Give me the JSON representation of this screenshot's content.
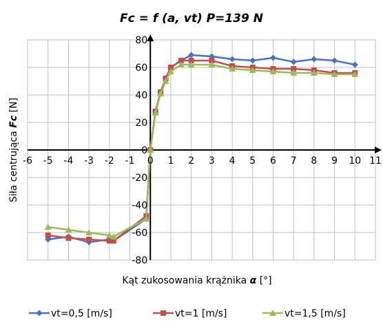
{
  "chart_data": {
    "type": "line",
    "title": "Fc = f (a, vt) P=139 N",
    "xlabel": "Kąt zukosowania krążnika",
    "xlabel_symbol": "α",
    "xlabel_unit": "[°]",
    "ylabel": "Siła centrująca",
    "ylabel_symbol": "Fc",
    "ylabel_unit": "[N]",
    "xlim": [
      -6,
      11
    ],
    "ylim": [
      -80,
      80
    ],
    "xticks": [
      -6,
      -5,
      -4,
      -3,
      -2,
      -1,
      0,
      1,
      2,
      3,
      4,
      5,
      6,
      7,
      8,
      9,
      10,
      11
    ],
    "yticks": [
      -80,
      -60,
      -40,
      -20,
      0,
      20,
      40,
      60,
      80
    ],
    "grid": true,
    "legend_position": "bottom",
    "series": [
      {
        "name": "vt=0,5 [m/s]",
        "color": "#4472C4",
        "marker": "diamond",
        "x": [
          -5,
          -4,
          -3,
          -2,
          -1.8,
          -0.2,
          0,
          0.25,
          0.5,
          0.75,
          1,
          1.5,
          2,
          3,
          4,
          5,
          6,
          7,
          8,
          9,
          10
        ],
        "y": [
          -65,
          -63,
          -67,
          -65,
          -66,
          -50,
          0,
          28,
          42,
          52,
          60,
          65,
          69,
          68,
          66,
          65,
          67,
          64,
          66,
          65,
          62
        ]
      },
      {
        "name": "vt=1 [m/s]",
        "color": "#C0504D",
        "marker": "square",
        "x": [
          -5,
          -4,
          -3,
          -2,
          -1.8,
          -0.2,
          0,
          0.25,
          0.5,
          0.75,
          1,
          1.5,
          2,
          3,
          4,
          5,
          6,
          7,
          8,
          9,
          10
        ],
        "y": [
          -62,
          -64,
          -65,
          -66,
          -66,
          -48,
          0,
          28,
          42,
          52,
          60,
          65,
          65,
          65,
          61,
          60,
          59,
          59,
          58,
          56,
          56
        ]
      },
      {
        "name": "vt=1,5 [m/s]",
        "color": "#9BBB59",
        "marker": "triangle",
        "x": [
          -5,
          -4,
          -3,
          -2,
          -1.8,
          -0.2,
          0,
          0.25,
          0.5,
          0.75,
          1,
          1.5,
          2,
          3,
          4,
          5,
          6,
          7,
          8,
          9,
          10
        ],
        "y": [
          -56,
          -58,
          -60,
          -62,
          -63,
          -50,
          0,
          27,
          41,
          50,
          57,
          62,
          62,
          62,
          59,
          58,
          57,
          56,
          56,
          55,
          55
        ]
      }
    ]
  }
}
